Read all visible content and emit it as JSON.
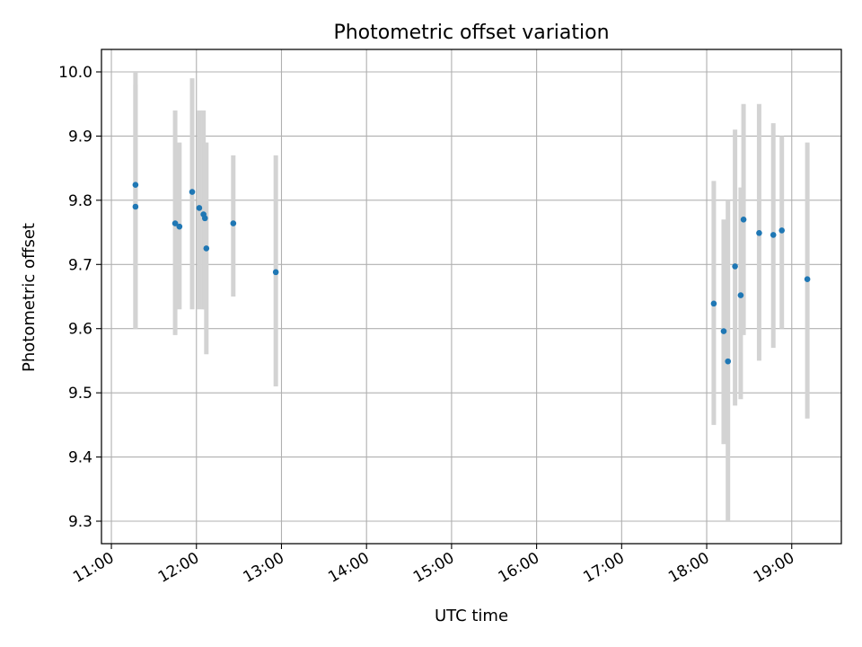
{
  "chart_data": {
    "type": "scatter",
    "title": "Photometric offset variation",
    "xlabel": "UTC time",
    "ylabel": "Photometric offset",
    "x_axis_kind": "time",
    "xlim": [
      "10:53",
      "19:35"
    ],
    "ylim": [
      9.265,
      10.035
    ],
    "x_ticks": [
      "11:00",
      "12:00",
      "13:00",
      "14:00",
      "15:00",
      "16:00",
      "17:00",
      "18:00",
      "19:00"
    ],
    "y_ticks": [
      "9.3",
      "9.4",
      "9.5",
      "9.6",
      "9.7",
      "9.8",
      "9.9",
      "10.0"
    ],
    "grid": true,
    "colors": {
      "point": "#1f77b4",
      "errorbar": "#d3d3d3",
      "grid": "#b0b0b0"
    },
    "points": [
      {
        "x": "11:17",
        "y": 9.824,
        "ylow": 9.6,
        "yhigh": 10.0
      },
      {
        "x": "11:17",
        "y": 9.79,
        "ylow": 9.6,
        "yhigh": 9.98
      },
      {
        "x": "11:45",
        "y": 9.764,
        "ylow": 9.59,
        "yhigh": 9.94
      },
      {
        "x": "11:48",
        "y": 9.759,
        "ylow": 9.63,
        "yhigh": 9.89
      },
      {
        "x": "11:57",
        "y": 9.813,
        "ylow": 9.63,
        "yhigh": 9.99
      },
      {
        "x": "12:02",
        "y": 9.788,
        "ylow": 9.63,
        "yhigh": 9.94
      },
      {
        "x": "12:05",
        "y": 9.778,
        "ylow": 9.63,
        "yhigh": 9.94
      },
      {
        "x": "12:06",
        "y": 9.772,
        "ylow": 9.63,
        "yhigh": 9.89
      },
      {
        "x": "12:07",
        "y": 9.725,
        "ylow": 9.56,
        "yhigh": 9.89
      },
      {
        "x": "12:26",
        "y": 9.764,
        "ylow": 9.65,
        "yhigh": 9.87
      },
      {
        "x": "12:56",
        "y": 9.688,
        "ylow": 9.51,
        "yhigh": 9.87
      },
      {
        "x": "18:05",
        "y": 9.639,
        "ylow": 9.45,
        "yhigh": 9.83
      },
      {
        "x": "18:12",
        "y": 9.596,
        "ylow": 9.42,
        "yhigh": 9.77
      },
      {
        "x": "18:15",
        "y": 9.549,
        "ylow": 9.3,
        "yhigh": 9.8
      },
      {
        "x": "18:20",
        "y": 9.697,
        "ylow": 9.48,
        "yhigh": 9.91
      },
      {
        "x": "18:24",
        "y": 9.652,
        "ylow": 9.49,
        "yhigh": 9.82
      },
      {
        "x": "18:26",
        "y": 9.77,
        "ylow": 9.59,
        "yhigh": 9.95
      },
      {
        "x": "18:37",
        "y": 9.749,
        "ylow": 9.55,
        "yhigh": 9.95
      },
      {
        "x": "18:47",
        "y": 9.746,
        "ylow": 9.57,
        "yhigh": 9.92
      },
      {
        "x": "18:53",
        "y": 9.753,
        "ylow": 9.6,
        "yhigh": 9.9
      },
      {
        "x": "19:11",
        "y": 9.677,
        "ylow": 9.46,
        "yhigh": 9.89
      }
    ]
  }
}
